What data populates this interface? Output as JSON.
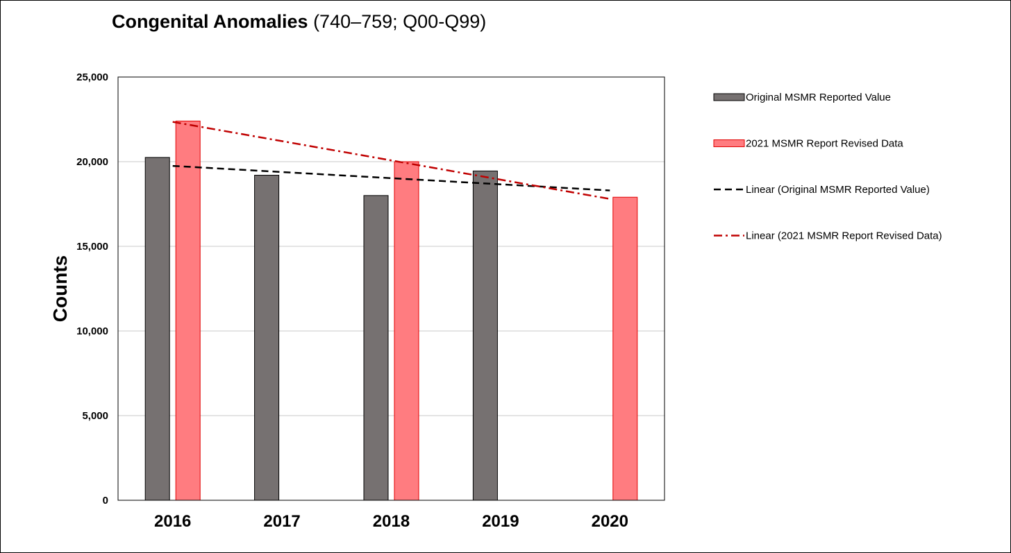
{
  "chart_data": {
    "type": "bar",
    "title": "Congenital Anomalies",
    "subtitle": "(740–759; Q00-Q99)",
    "xlabel": "",
    "ylabel": "Counts",
    "categories": [
      "2016",
      "2017",
      "2018",
      "2019",
      "2020"
    ],
    "ylim": [
      0,
      25000
    ],
    "yticks": [
      0,
      5000,
      10000,
      15000,
      20000,
      25000
    ],
    "ytick_labels": [
      "0",
      "5,000",
      "10,000",
      "15,000",
      "20,000",
      "25,000"
    ],
    "grid": true,
    "legend_position": "right",
    "series": [
      {
        "name": "Original MSMR Reported Value",
        "values": [
          20250,
          19200,
          18000,
          19450,
          null
        ],
        "color": "#767171"
      },
      {
        "name": "2021 MSMR Report Revised Data",
        "values": [
          22400,
          null,
          20000,
          null,
          17900
        ],
        "color": "#ff7c80"
      }
    ],
    "trendlines": [
      {
        "name": "Linear (Original MSMR Reported Value)",
        "type": "linear",
        "from_x": "2016",
        "to_x": "2020",
        "start": 19750,
        "end": 18300,
        "color": "#000000",
        "style": "dashed"
      },
      {
        "name": "Linear (2021 MSMR Report Revised Data)",
        "type": "linear",
        "from_x": "2016",
        "to_x": "2020",
        "start": 22350,
        "end": 17800,
        "color": "#c00000",
        "style": "dash-dot"
      }
    ]
  }
}
